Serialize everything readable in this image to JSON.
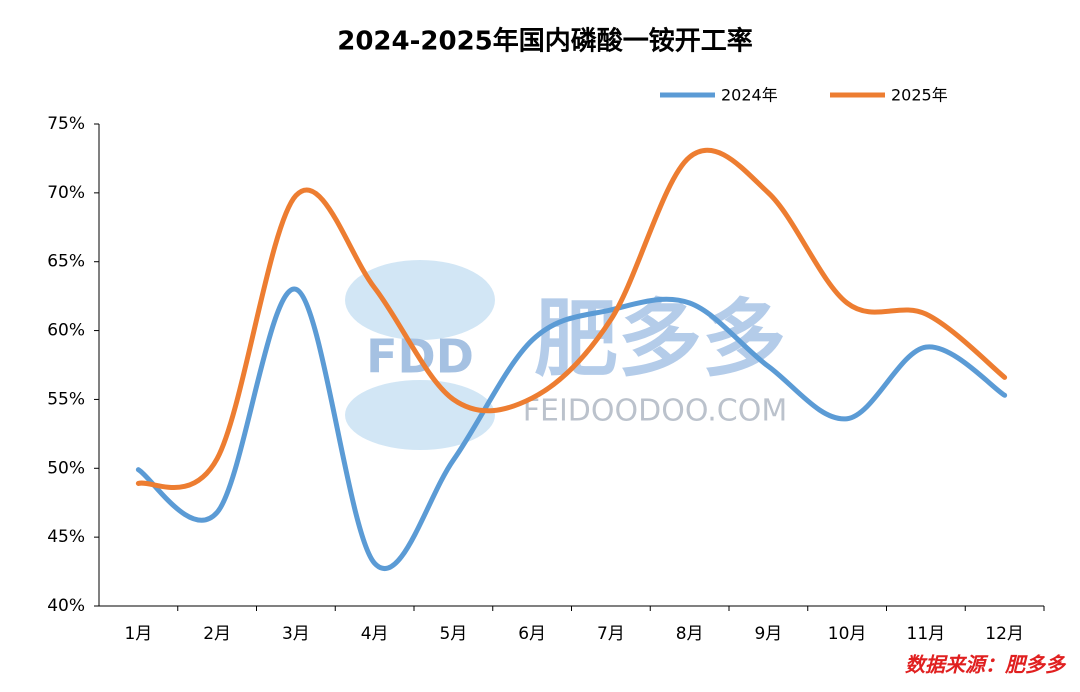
{
  "chart_data": {
    "type": "line",
    "title": "2024-2025年国内磷酸一铵开工率",
    "categories": [
      "1月",
      "2月",
      "3月",
      "4月",
      "5月",
      "6月",
      "7月",
      "8月",
      "9月",
      "10月",
      "11月",
      "12月"
    ],
    "series": [
      {
        "name": "2024年",
        "color": "#5b9bd5",
        "values": [
          49.9,
          46.8,
          63.0,
          43.1,
          50.6,
          59.3,
          61.5,
          62.0,
          57.4,
          53.6,
          58.8,
          55.3
        ]
      },
      {
        "name": "2025年",
        "color": "#ed7d31",
        "values": [
          48.9,
          50.7,
          69.8,
          63.1,
          55.0,
          55.1,
          60.8,
          72.6,
          70.0,
          62.0,
          61.2,
          56.6
        ]
      }
    ],
    "ylim": [
      40,
      75
    ],
    "yticks": [
      {
        "value": 40,
        "label": "40%"
      },
      {
        "value": 45,
        "label": "45%"
      },
      {
        "value": 50,
        "label": "50%"
      },
      {
        "value": 55,
        "label": "55%"
      },
      {
        "value": 60,
        "label": "60%"
      },
      {
        "value": 65,
        "label": "65%"
      },
      {
        "value": 70,
        "label": "70%"
      },
      {
        "value": 75,
        "label": "75%"
      }
    ],
    "grid": false,
    "legend": "top",
    "watermark": {
      "logo": "FDD",
      "brand": "肥多多",
      "site": "FEIDOODOO.COM"
    },
    "source": "数据来源：肥多多"
  }
}
